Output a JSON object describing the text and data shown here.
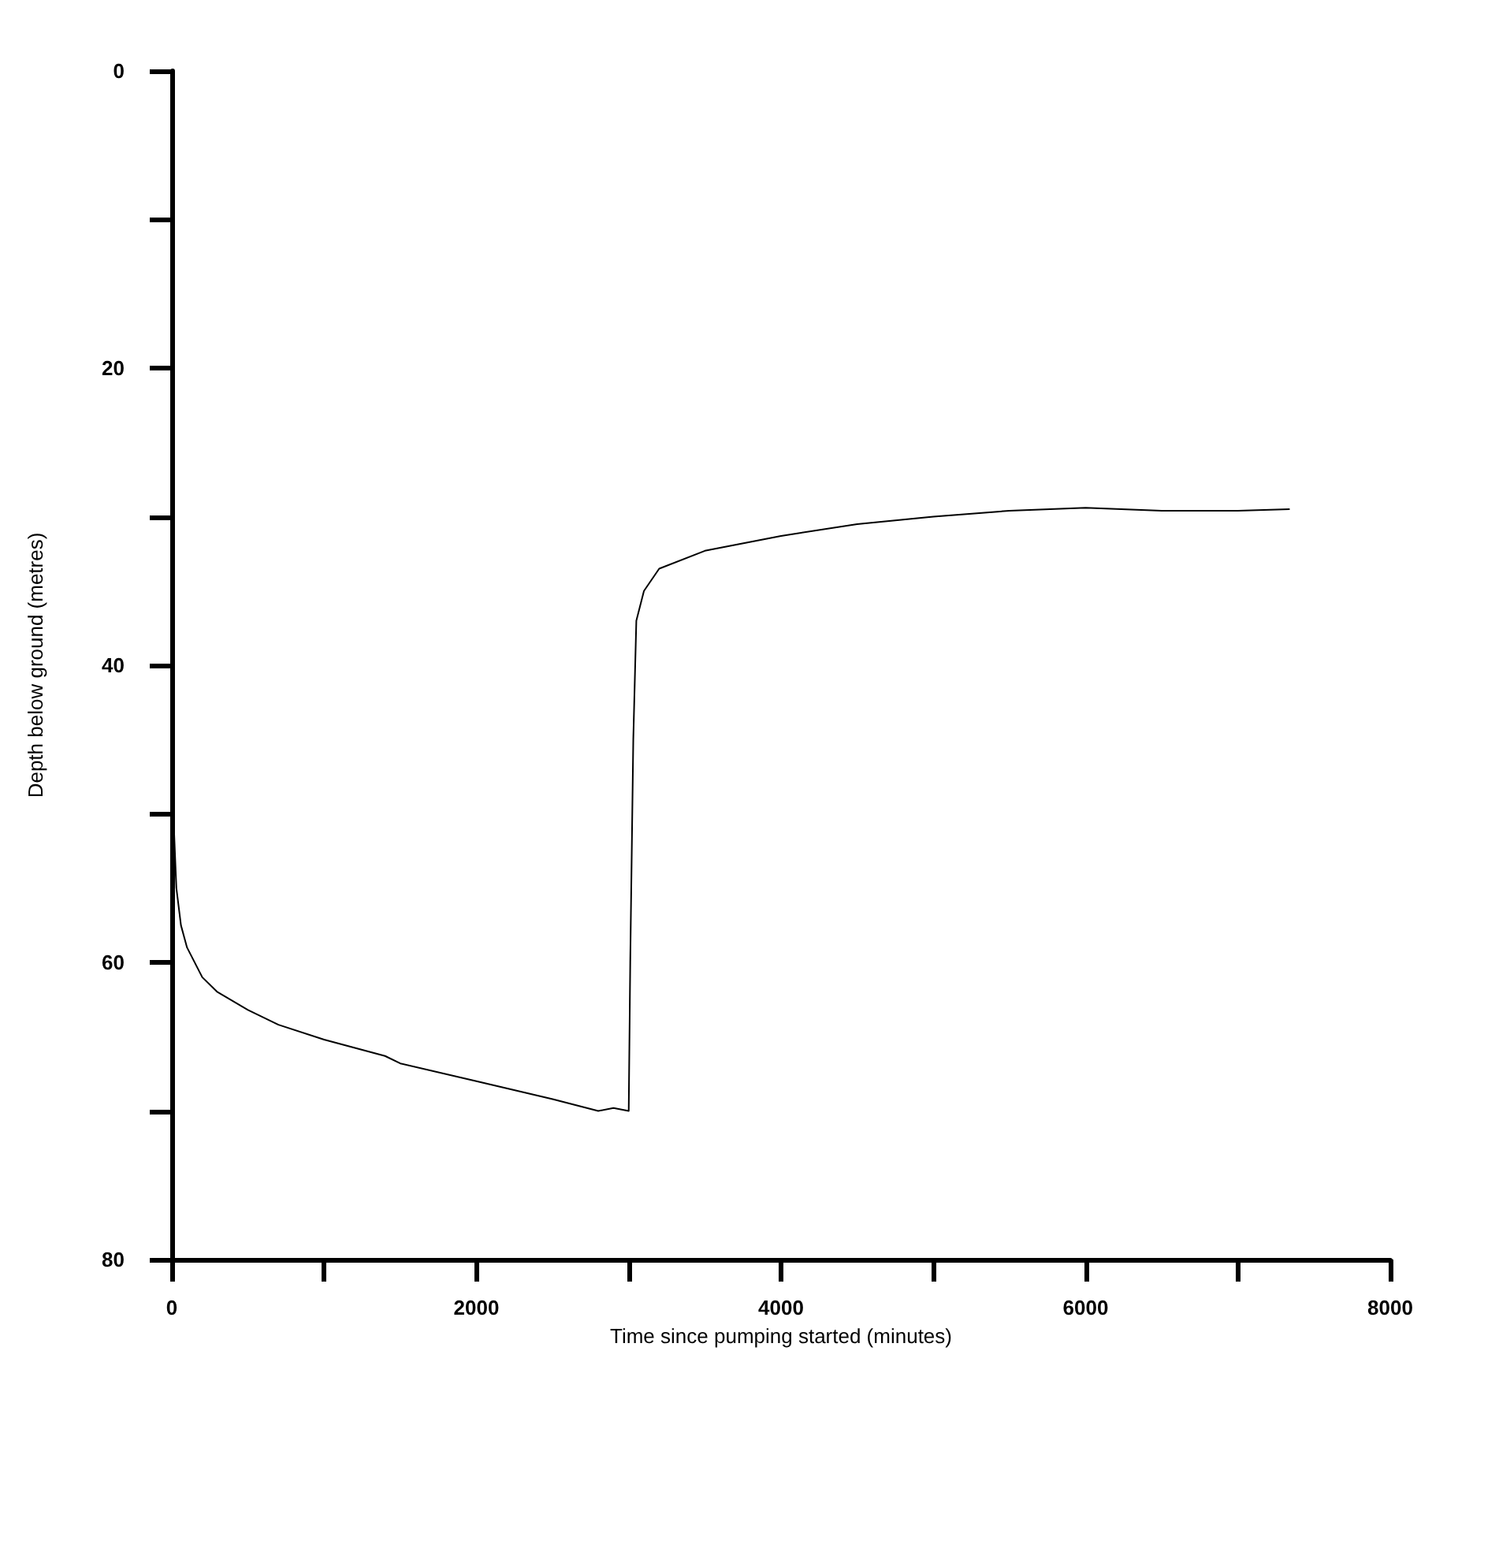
{
  "chart_data": {
    "type": "line",
    "xlabel": "Time since pumping started (minutes)",
    "ylabel": "Depth below ground (metres)",
    "xlim": [
      0,
      8000
    ],
    "ylim": [
      80,
      0
    ],
    "xticks": [
      0,
      {
        "value": 1000,
        "label": null
      },
      2000,
      {
        "value": 3000,
        "label": null
      },
      4000,
      {
        "value": 5000,
        "label": null
      },
      6000,
      {
        "value": 7000,
        "label": null
      },
      8000
    ],
    "yticks": [
      0,
      {
        "value": 10,
        "label": null
      },
      20,
      {
        "value": 30,
        "label": null
      },
      40,
      {
        "value": 50,
        "label": null
      },
      60,
      {
        "value": 70,
        "label": null
      },
      80
    ],
    "grid": false,
    "marker": "none",
    "line_style": "solid",
    "series": [
      {
        "color": "#000000",
        "x": [
          0,
          10,
          30,
          60,
          100,
          200,
          300,
          500,
          700,
          1000,
          1400,
          1500,
          2000,
          2500,
          2800,
          2900,
          3000,
          3010,
          3030,
          3050,
          3100,
          3200,
          3500,
          4000,
          4500,
          5000,
          5500,
          6000,
          6500,
          7000,
          7340
        ],
        "values": [
          45,
          50,
          55,
          57.5,
          59,
          61,
          62,
          63.2,
          64.2,
          65.2,
          66.3,
          66.8,
          68,
          69.2,
          70,
          69.8,
          70,
          60,
          45,
          37,
          35,
          33.5,
          32.3,
          31.3,
          30.5,
          30,
          29.6,
          29.4,
          29.6,
          29.6,
          29.5
        ]
      }
    ]
  }
}
